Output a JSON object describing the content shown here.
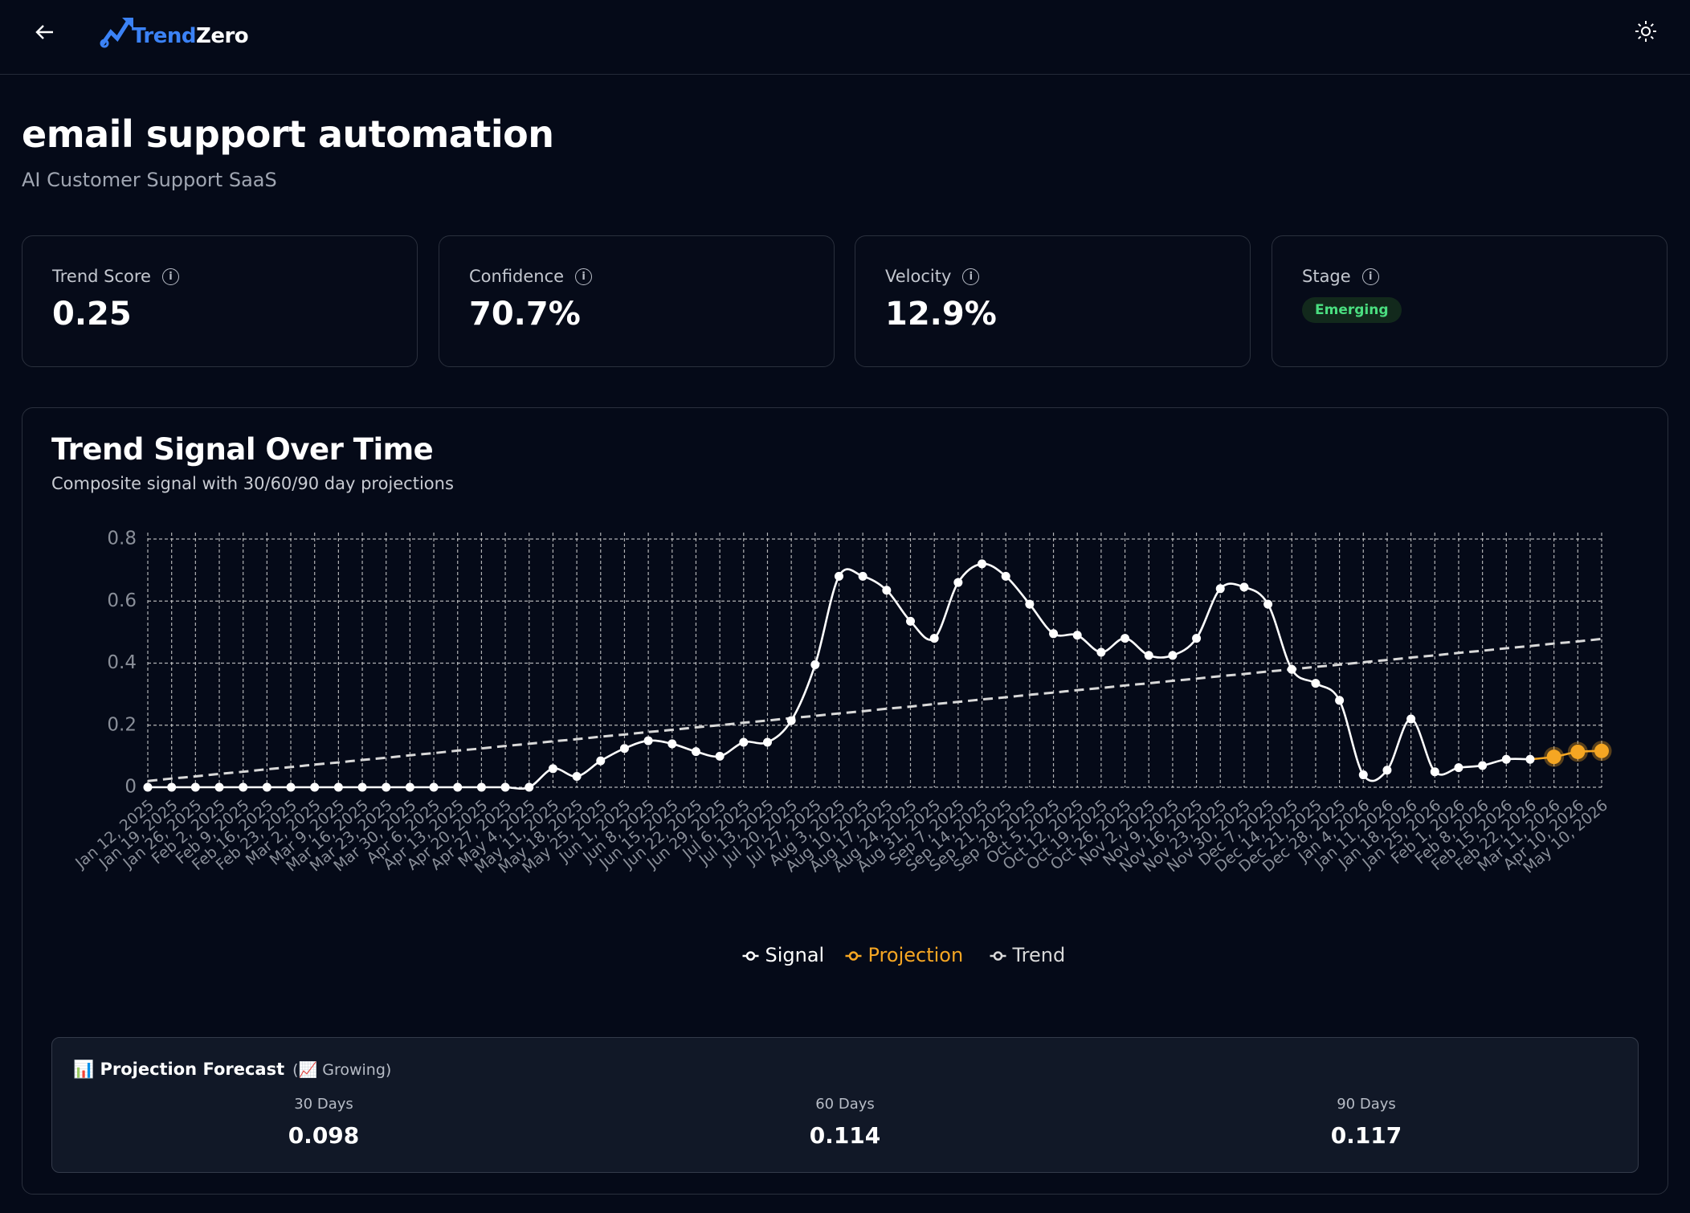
{
  "header": {
    "brand_first": "Trend",
    "brand_second": "Zero"
  },
  "page": {
    "title": "email support automation",
    "subtitle": "AI Customer Support SaaS"
  },
  "metrics": [
    {
      "label": "Trend Score",
      "value": "0.25"
    },
    {
      "label": "Confidence",
      "value": "70.7%"
    },
    {
      "label": "Velocity",
      "value": "12.9%"
    },
    {
      "label": "Stage",
      "value": "Emerging"
    }
  ],
  "chart_data": {
    "type": "line",
    "title": "Trend Signal Over Time",
    "subtitle": "Composite signal with 30/60/90 day projections",
    "categories": [
      "Jan 12, 2025",
      "Jan 19, 2025",
      "Jan 26, 2025",
      "Feb 2, 2025",
      "Feb 9, 2025",
      "Feb 16, 2025",
      "Feb 23, 2025",
      "Mar 2, 2025",
      "Mar 9, 2025",
      "Mar 16, 2025",
      "Mar 23, 2025",
      "Mar 30, 2025",
      "Apr 6, 2025",
      "Apr 13, 2025",
      "Apr 20, 2025",
      "Apr 27, 2025",
      "May 4, 2025",
      "May 11, 2025",
      "May 18, 2025",
      "May 25, 2025",
      "Jun 1, 2025",
      "Jun 8, 2025",
      "Jun 15, 2025",
      "Jun 22, 2025",
      "Jun 29, 2025",
      "Jul 6, 2025",
      "Jul 13, 2025",
      "Jul 20, 2025",
      "Jul 27, 2025",
      "Aug 3, 2025",
      "Aug 10, 2025",
      "Aug 17, 2025",
      "Aug 24, 2025",
      "Aug 31, 2025",
      "Sep 7, 2025",
      "Sep 14, 2025",
      "Sep 21, 2025",
      "Sep 28, 2025",
      "Oct 5, 2025",
      "Oct 12, 2025",
      "Oct 19, 2025",
      "Oct 26, 2025",
      "Nov 2, 2025",
      "Nov 9, 2025",
      "Nov 16, 2025",
      "Nov 23, 2025",
      "Nov 30, 2025",
      "Dec 7, 2025",
      "Dec 14, 2025",
      "Dec 21, 2025",
      "Dec 28, 2025",
      "Jan 4, 2026",
      "Jan 11, 2026",
      "Jan 18, 2026",
      "Jan 25, 2026",
      "Feb 1, 2026",
      "Feb 8, 2026",
      "Feb 15, 2026",
      "Feb 22, 2026",
      "Mar 11, 2026",
      "Apr 10, 2026",
      "May 10, 2026"
    ],
    "series": [
      {
        "name": "Signal",
        "color": "#ffffff",
        "dashed": false,
        "points": true,
        "values": [
          0,
          0,
          0,
          0,
          0,
          0,
          0,
          0,
          0,
          0,
          0,
          0,
          0,
          0,
          0,
          0,
          0,
          0.06,
          0.035,
          0.085,
          0.125,
          0.15,
          0.14,
          0.115,
          0.1,
          0.145,
          0.145,
          0.215,
          0.395,
          0.68,
          0.68,
          0.635,
          0.535,
          0.48,
          0.66,
          0.72,
          0.68,
          0.59,
          0.495,
          0.49,
          0.435,
          0.48,
          0.425,
          0.425,
          0.48,
          0.64,
          0.645,
          0.59,
          0.38,
          0.335,
          0.28,
          0.04,
          0.055,
          0.22,
          0.05,
          0.063,
          0.07,
          0.09,
          0.09,
          null,
          null,
          null
        ]
      },
      {
        "name": "Projection",
        "color": "#f5a623",
        "dashed": false,
        "points": true,
        "values": [
          null,
          null,
          null,
          null,
          null,
          null,
          null,
          null,
          null,
          null,
          null,
          null,
          null,
          null,
          null,
          null,
          null,
          null,
          null,
          null,
          null,
          null,
          null,
          null,
          null,
          null,
          null,
          null,
          null,
          null,
          null,
          null,
          null,
          null,
          null,
          null,
          null,
          null,
          null,
          null,
          null,
          null,
          null,
          null,
          null,
          null,
          null,
          null,
          null,
          null,
          null,
          null,
          null,
          null,
          null,
          null,
          null,
          null,
          0.09,
          0.098,
          0.114,
          0.117
        ]
      },
      {
        "name": "Trend",
        "color": "#d9d9d9",
        "dashed": true,
        "points": false,
        "values": [
          0.02,
          0.028,
          0.035,
          0.043,
          0.05,
          0.058,
          0.065,
          0.073,
          0.08,
          0.088,
          0.095,
          0.103,
          0.11,
          0.118,
          0.125,
          0.133,
          0.14,
          0.148,
          0.155,
          0.163,
          0.17,
          0.178,
          0.185,
          0.193,
          0.2,
          0.208,
          0.215,
          0.223,
          0.23,
          0.238,
          0.245,
          0.253,
          0.26,
          0.268,
          0.275,
          0.283,
          0.29,
          0.298,
          0.305,
          0.313,
          0.32,
          0.328,
          0.335,
          0.343,
          0.35,
          0.358,
          0.365,
          0.373,
          0.38,
          0.388,
          0.395,
          0.403,
          0.41,
          0.418,
          0.425,
          0.433,
          0.44,
          0.448,
          0.455,
          0.463,
          0.47,
          0.478
        ]
      }
    ],
    "ylim": [
      0,
      0.8
    ],
    "yticks": [
      0,
      0.2,
      0.4,
      0.6,
      0.8
    ],
    "grid": true,
    "legend": "bottom"
  },
  "forecast": {
    "title": "📊 Projection Forecast",
    "status": "(📈 Growing)",
    "items": [
      {
        "label": "30 Days",
        "value": "0.098"
      },
      {
        "label": "60 Days",
        "value": "0.114"
      },
      {
        "label": "90 Days",
        "value": "0.117"
      }
    ]
  }
}
